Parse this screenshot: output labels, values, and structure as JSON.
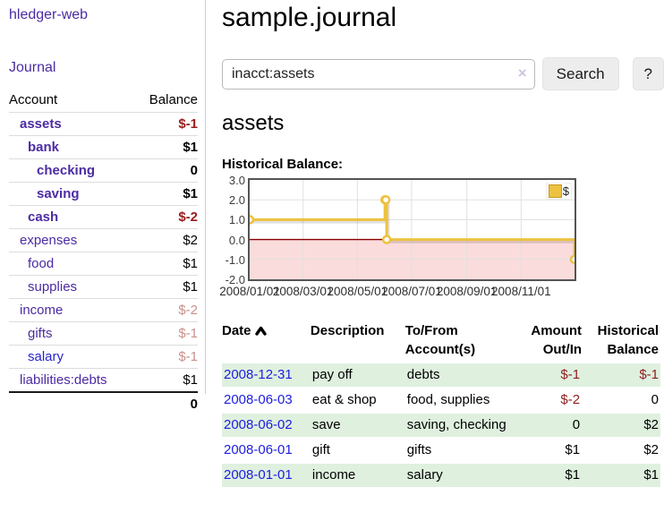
{
  "brand": "hledger-web",
  "nav": {
    "journal": "Journal"
  },
  "sidebar": {
    "columns": {
      "account": "Account",
      "balance": "Balance"
    },
    "accounts": [
      {
        "name": "assets",
        "balance": "$-1",
        "indent": 1,
        "bold": true,
        "balance_style": "neg"
      },
      {
        "name": "bank",
        "balance": "$1",
        "indent": 2,
        "bold": true,
        "balance_style": "plain"
      },
      {
        "name": "checking",
        "balance": "0",
        "indent": 3,
        "bold": true,
        "balance_style": "plain"
      },
      {
        "name": "saving",
        "balance": "$1",
        "indent": 3,
        "bold": true,
        "balance_style": "plain"
      },
      {
        "name": "cash",
        "balance": "$-2",
        "indent": 2,
        "bold": true,
        "balance_style": "neg"
      },
      {
        "name": "expenses",
        "balance": "$2",
        "indent": 1,
        "bold": false,
        "balance_style": "plain"
      },
      {
        "name": "food",
        "balance": "$1",
        "indent": 2,
        "bold": false,
        "balance_style": "plain"
      },
      {
        "name": "supplies",
        "balance": "$1",
        "indent": 2,
        "bold": false,
        "balance_style": "plain"
      },
      {
        "name": "income",
        "balance": "$-2",
        "indent": 1,
        "bold": false,
        "balance_style": "negm"
      },
      {
        "name": "gifts",
        "balance": "$-1",
        "indent": 2,
        "bold": false,
        "balance_style": "negm"
      },
      {
        "name": "salary",
        "balance": "$-1",
        "indent": 2,
        "bold": false,
        "balance_style": "negm",
        "link_color": "blue"
      },
      {
        "name": "liabilities:debts",
        "balance": "$1",
        "indent": 1,
        "bold": false,
        "balance_style": "plain"
      }
    ],
    "total": "0"
  },
  "page": {
    "title": "sample.journal"
  },
  "search": {
    "value": "inacct:assets",
    "clear_icon": "×",
    "button_label": "Search",
    "help_label": "?"
  },
  "section": {
    "heading": "assets",
    "chart_title": "Historical Balance:"
  },
  "chart_data": {
    "type": "line",
    "step": true,
    "title": "Historical Balance",
    "series": [
      {
        "name": "$",
        "points": [
          [
            "2008-01-01",
            1
          ],
          [
            "2008-06-01",
            2
          ],
          [
            "2008-06-02",
            2
          ],
          [
            "2008-06-03",
            0
          ],
          [
            "2008-12-31",
            -1
          ]
        ]
      }
    ],
    "x_ticks": [
      "2008/01/01",
      "2008/03/01",
      "2008/05/01",
      "2008/07/01",
      "2008/09/01",
      "2008/11/01"
    ],
    "y_ticks": [
      3.0,
      2.0,
      1.0,
      0.0,
      -1.0,
      -2.0
    ],
    "ylim": [
      -2,
      3
    ],
    "x_range": [
      "2008-01-01",
      "2008-12-31"
    ],
    "legend": "$",
    "legend_position": "top-right",
    "grid": true,
    "negative_region_shaded": true,
    "colors": {
      "line": "#edc240",
      "point_fill": "#ffffff",
      "negative_fill": "#fbdcdc",
      "zero_line": "#8b0000",
      "grid_line": "#e0e0e0",
      "border": "#545454"
    }
  },
  "register": {
    "columns": {
      "date": "Date",
      "description": "Description",
      "accounts": "To/From\nAccount(s)",
      "amount": "Amount\nOut/In",
      "balance": "Historical\nBalance"
    },
    "rows": [
      {
        "date": "2008-12-31",
        "description": "pay off",
        "accounts": "debts",
        "amount": "$-1",
        "balance": "$-1",
        "amount_neg": true,
        "balance_neg": true,
        "green": true
      },
      {
        "date": "2008-06-03",
        "description": "eat & shop",
        "accounts": "food, supplies",
        "amount": "$-2",
        "balance": "0",
        "amount_neg": true,
        "balance_neg": false,
        "green": false
      },
      {
        "date": "2008-06-02",
        "description": "save",
        "accounts": "saving, checking",
        "amount": "0",
        "balance": "$2",
        "amount_neg": false,
        "balance_neg": false,
        "green": true
      },
      {
        "date": "2008-06-01",
        "description": "gift",
        "accounts": "gifts",
        "amount": "$1",
        "balance": "$2",
        "amount_neg": false,
        "balance_neg": false,
        "green": false
      },
      {
        "date": "2008-01-01",
        "description": "income",
        "accounts": "salary",
        "amount": "$1",
        "balance": "$1",
        "amount_neg": false,
        "balance_neg": false,
        "green": true
      }
    ]
  },
  "colors": {
    "link_purple": "#4c2ba3",
    "link_blue": "#1d1de0",
    "negative": "#8f1d1d",
    "negative_muted": "#c9908c",
    "row_green": "#dff0df"
  }
}
